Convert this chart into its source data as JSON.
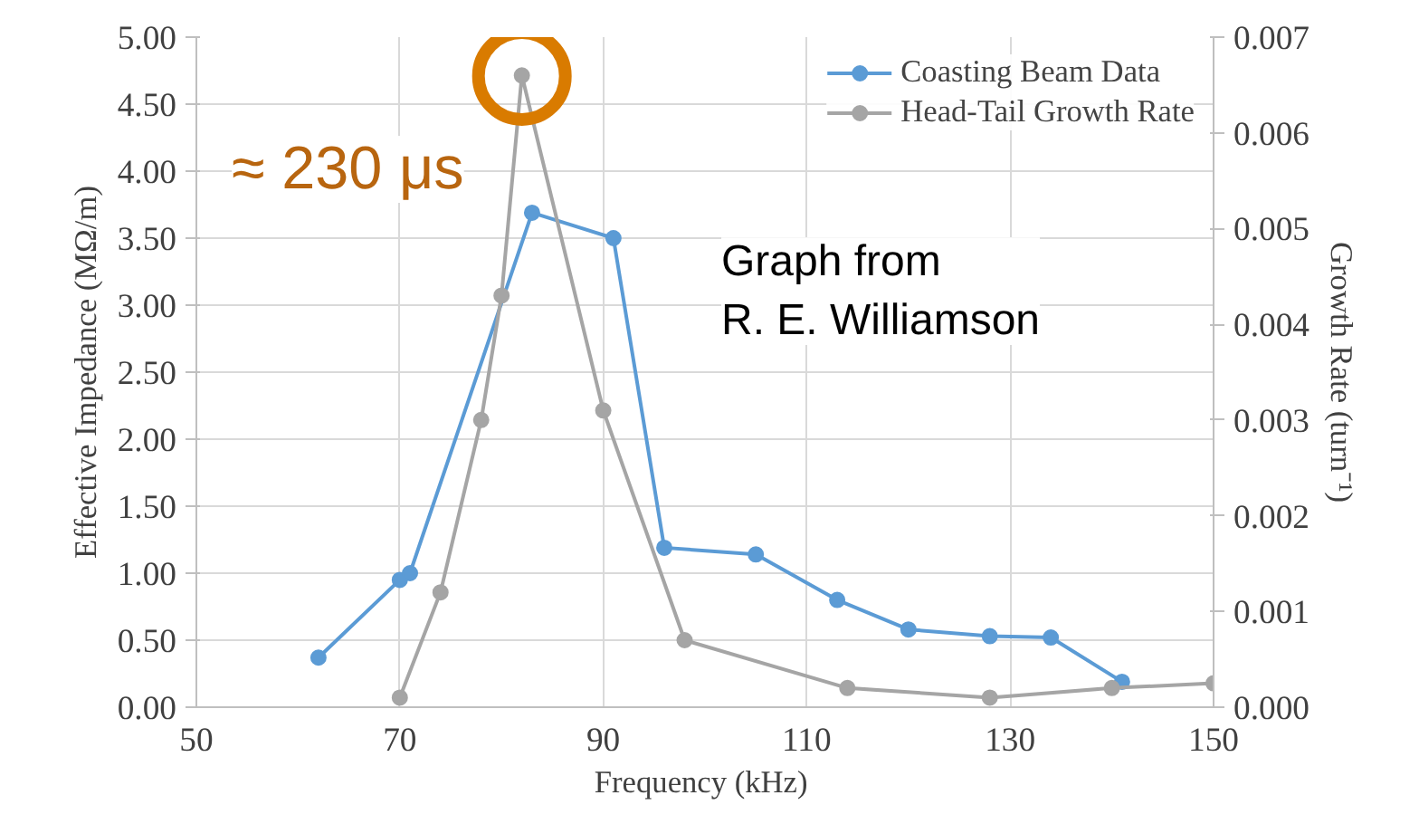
{
  "chart_data": {
    "type": "line",
    "xlabel": "Frequency  (kHz)",
    "ylabel": "Effective Impedance (MΩ/m)",
    "y2label": "Growth Rate (turn⁻¹)",
    "xlim": [
      50,
      150
    ],
    "xticks": [
      50,
      70,
      90,
      110,
      130,
      150
    ],
    "ylim": [
      0,
      5
    ],
    "yticks": [
      {
        "value": 0,
        "label": "0.00"
      },
      {
        "value": 0.5,
        "label": "0.50"
      },
      {
        "value": 1,
        "label": "1.00"
      },
      {
        "value": 1.5,
        "label": "1.50"
      },
      {
        "value": 2,
        "label": "2.00"
      },
      {
        "value": 2.5,
        "label": "2.50"
      },
      {
        "value": 3,
        "label": "3.00"
      },
      {
        "value": 3.5,
        "label": "3.50"
      },
      {
        "value": 4,
        "label": "4.00"
      },
      {
        "value": 4.5,
        "label": "4.50"
      },
      {
        "value": 5,
        "label": "5.00"
      }
    ],
    "y2lim": [
      0,
      0.007
    ],
    "y2ticks": [
      {
        "value": 0,
        "label": "0.000"
      },
      0.001,
      0.002,
      0.003,
      0.004,
      0.005,
      0.006,
      0.007
    ],
    "grid": true,
    "legend": "top right",
    "marker": "circle",
    "line_style": "solid",
    "series": [
      {
        "name": "Coasting Beam Data",
        "color": "#5b9bd5",
        "x": [
          62,
          70,
          71,
          83,
          91,
          96,
          105,
          113,
          120,
          128,
          134,
          141
        ],
        "values": [
          0.37,
          0.95,
          1.0,
          3.69,
          3.5,
          1.19,
          1.14,
          0.8,
          0.58,
          0.53,
          0.52,
          0.19
        ]
      },
      {
        "name": "Head-Tail Growth Rate",
        "color": "#a5a5a5",
        "axis": "y2",
        "x": [
          70,
          74,
          78,
          80,
          82,
          90,
          98,
          114,
          128,
          140,
          150
        ],
        "values": [
          0.0001,
          0.0012,
          0.003,
          0.0043,
          0.0066,
          0.0031,
          0.0007,
          0.0002,
          0.0001,
          0.0002,
          0.00025
        ]
      }
    ],
    "annotations": [
      {
        "text": "≈ 230 μs",
        "x": 82,
        "y": 4.71
      },
      "Graph from\nR. E. Williamson"
    ]
  }
}
